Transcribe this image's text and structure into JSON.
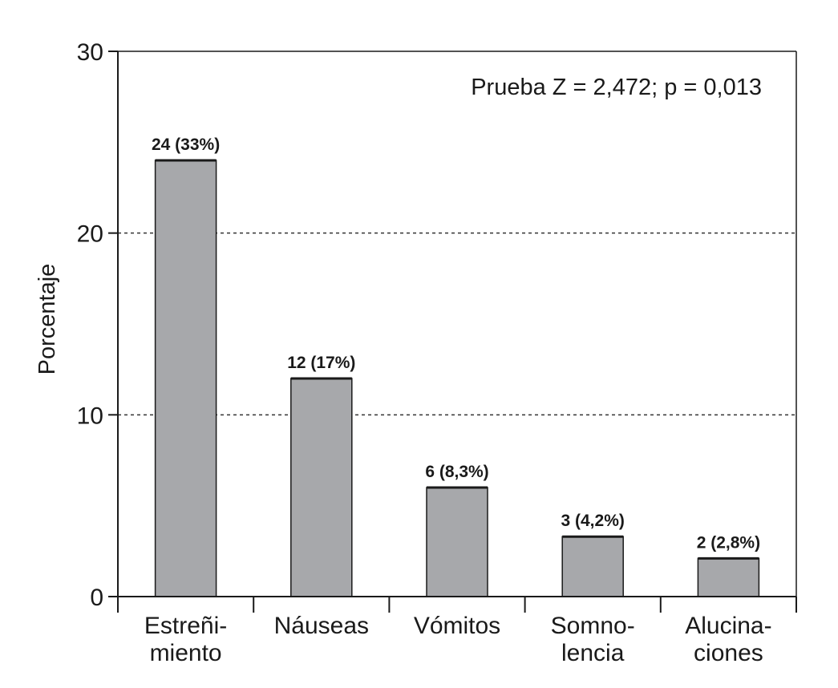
{
  "chart_data": {
    "type": "bar",
    "categories": [
      [
        "Estreñi-",
        "miento"
      ],
      [
        "Náuseas"
      ],
      [
        "Vómitos"
      ],
      [
        "Somno-",
        "lencia"
      ],
      [
        "Alucina-",
        "ciones"
      ]
    ],
    "values": [
      24,
      12,
      6,
      3.3,
      2.1
    ],
    "data_labels": [
      "24 (33%)",
      "12 (17%)",
      "6 (8,3%)",
      "3 (4,2%)",
      "2 (2,8%)"
    ],
    "ylabel": "Porcentaje",
    "xlabel": "",
    "ylim": [
      0,
      30
    ],
    "yticks": [
      0,
      10,
      20,
      30
    ],
    "grid_dashed_at": [
      10,
      20
    ],
    "annotation": "Prueba Z = 2,472; p = 0,013",
    "colors": {
      "bar": "#a7a8ab",
      "bar_edge": "#1a1a1a",
      "axis": "#1a1a1a"
    }
  }
}
